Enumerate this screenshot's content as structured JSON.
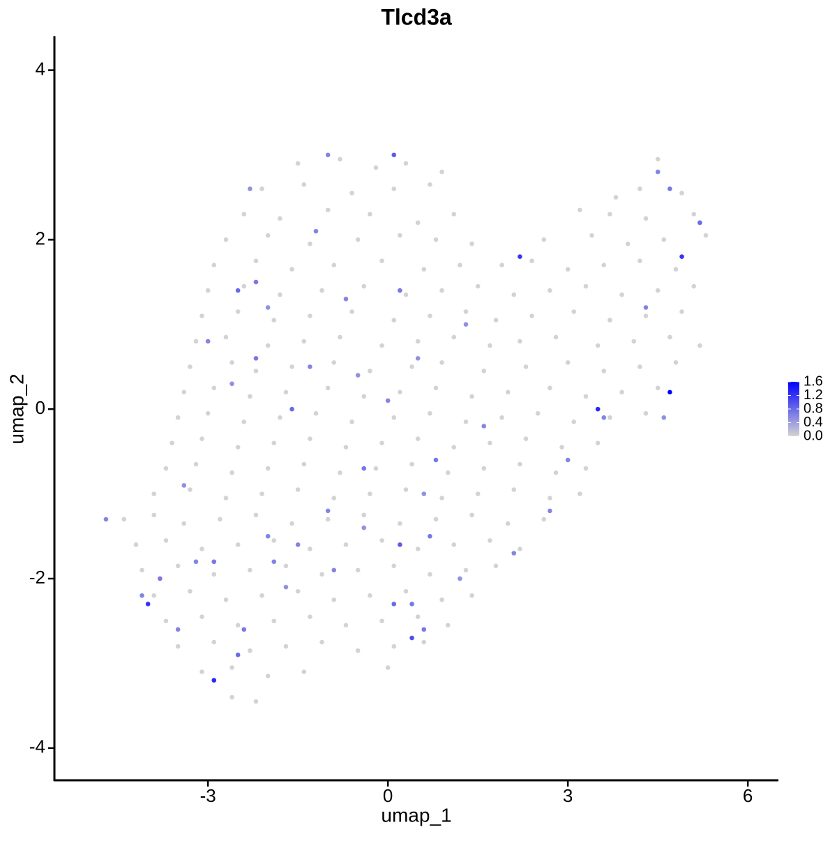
{
  "chart_data": {
    "type": "scatter",
    "title": "Tlcd3a",
    "x_label": "umap_1",
    "y_label": "umap_2",
    "xlim": [
      -5.56,
      6.51
    ],
    "ylim": [
      -4.38,
      4.4
    ],
    "xticks": [
      -3,
      0,
      3,
      6
    ],
    "yticks": [
      -4,
      -2,
      0,
      2,
      4
    ],
    "color_low": "#d3d3d3",
    "color_high": "#0000ff",
    "clim": [
      0,
      1.6
    ],
    "colorbar_ticks": [
      {
        "value": 0,
        "label": "0.0"
      },
      0.4,
      0.8,
      1.2,
      1.6
    ],
    "x": [
      -1.5,
      -0.8,
      -0.2,
      0.3,
      0.9,
      4.5,
      -2.1,
      -1.4,
      -0.6,
      0.1,
      0.7,
      3.8,
      4.2,
      4.9,
      -2.4,
      -1.8,
      -1.0,
      -0.3,
      0.5,
      1.1,
      3.2,
      3.7,
      4.3,
      5.1,
      -2.7,
      -2.0,
      -1.3,
      -0.5,
      0.2,
      0.8,
      1.4,
      2.6,
      3.4,
      4.0,
      4.6,
      5.3,
      -2.9,
      -2.2,
      -1.6,
      -0.9,
      -0.1,
      0.6,
      1.2,
      1.9,
      2.4,
      3.0,
      3.6,
      4.2,
      4.8,
      -3.0,
      -2.4,
      -1.8,
      -1.1,
      -0.4,
      0.3,
      0.9,
      1.5,
      2.1,
      2.7,
      3.3,
      3.9,
      4.5,
      5.1,
      -3.1,
      -2.5,
      -1.9,
      -1.3,
      -0.6,
      0.1,
      0.7,
      1.3,
      1.8,
      2.4,
      3.1,
      3.7,
      4.3,
      4.9,
      -3.2,
      -2.7,
      -2.0,
      -1.4,
      -0.8,
      -0.1,
      0.5,
      1.1,
      1.7,
      2.2,
      2.8,
      3.5,
      4.1,
      4.7,
      5.2,
      -3.3,
      -2.6,
      -2.2,
      -1.6,
      -0.9,
      -0.3,
      0.4,
      0.9,
      1.6,
      2.3,
      3.0,
      3.6,
      4.2,
      4.8,
      -3.4,
      -2.9,
      -2.3,
      -1.7,
      -1.0,
      -0.4,
      0.2,
      0.8,
      1.4,
      2.0,
      2.7,
      3.3,
      3.9,
      4.5,
      -3.5,
      -3.0,
      -2.4,
      -1.8,
      -1.2,
      -0.6,
      0.1,
      0.7,
      1.3,
      1.9,
      2.5,
      3.1,
      3.7,
      4.3,
      -3.6,
      -3.1,
      -2.5,
      -1.9,
      -1.3,
      -0.7,
      -0.1,
      0.5,
      1.1,
      1.7,
      2.3,
      2.9,
      3.5,
      -3.7,
      -3.2,
      -2.6,
      -2.0,
      -1.4,
      -0.8,
      -0.2,
      0.4,
      1.0,
      1.6,
      2.2,
      2.8,
      3.3,
      -3.9,
      -3.3,
      -2.7,
      -2.1,
      -1.5,
      -0.9,
      -0.3,
      0.3,
      0.9,
      1.5,
      2.1,
      2.7,
      3.2,
      -4.4,
      -3.9,
      -3.4,
      -2.8,
      -2.2,
      -1.6,
      -1.0,
      -0.4,
      0.2,
      0.8,
      1.4,
      2.0,
      2.6,
      -4.2,
      -3.7,
      -3.1,
      -2.5,
      -1.9,
      -1.3,
      -0.7,
      -0.1,
      0.5,
      1.1,
      1.7,
      2.2,
      -4.1,
      -3.5,
      -2.9,
      -2.3,
      -1.7,
      -1.1,
      -0.5,
      0.1,
      0.7,
      1.3,
      1.8,
      -3.9,
      -3.3,
      -2.7,
      -2.1,
      -1.5,
      -0.9,
      -0.3,
      0.3,
      0.9,
      1.4,
      -3.7,
      -3.1,
      -2.5,
      -1.9,
      -1.3,
      -0.7,
      -0.1,
      0.5,
      1.0,
      -3.5,
      -2.9,
      -2.3,
      -1.7,
      -1.1,
      -0.5,
      0.1,
      0.6,
      -3.1,
      -2.6,
      -2.0,
      -1.4,
      0.0,
      -2.6,
      -2.2,
      -2.3,
      -1.0,
      0.1,
      -2.2,
      -2.5,
      -2.0,
      -1.2,
      -3.0,
      -2.2,
      -1.3,
      -2.6,
      -1.6,
      -0.5,
      0.0,
      0.5,
      1.3,
      2.2,
      4.5,
      4.7,
      5.2,
      4.9,
      4.3,
      3.5,
      4.7,
      3.6,
      4.6,
      -4.7,
      -4.0,
      -4.1,
      -3.8,
      -2.9,
      -2.5,
      -2.4,
      -2.0,
      -1.0,
      -0.4,
      0.2,
      0.1,
      0.4,
      0.4,
      0.6,
      0.7,
      1.2,
      2.1,
      2.7,
      3.0,
      -1.9,
      -1.7,
      -3.2,
      -3.4,
      -0.9,
      0.8,
      1.6,
      -0.7,
      0.2,
      0.6,
      -2.9,
      -3.5,
      -1.5,
      -0.4
    ],
    "y": [
      2.9,
      2.95,
      2.85,
      2.9,
      2.8,
      2.95,
      2.6,
      2.65,
      2.55,
      2.6,
      2.65,
      2.5,
      2.6,
      2.55,
      2.3,
      2.25,
      2.35,
      2.3,
      2.2,
      2.3,
      2.35,
      2.3,
      2.25,
      2.3,
      2.0,
      2.05,
      1.95,
      2.0,
      2.05,
      2.0,
      1.95,
      2.0,
      2.05,
      1.95,
      2.0,
      2.05,
      1.7,
      1.75,
      1.65,
      1.7,
      1.75,
      1.65,
      1.7,
      1.7,
      1.75,
      1.65,
      1.7,
      1.75,
      1.65,
      1.4,
      1.45,
      1.35,
      1.4,
      1.45,
      1.35,
      1.4,
      1.45,
      1.35,
      1.4,
      1.45,
      1.35,
      1.4,
      1.45,
      1.1,
      1.15,
      1.05,
      1.1,
      1.15,
      1.05,
      1.1,
      1.15,
      1.05,
      1.1,
      1.15,
      1.05,
      1.1,
      1.15,
      0.8,
      0.85,
      0.75,
      0.8,
      0.85,
      0.75,
      0.8,
      0.85,
      0.75,
      0.8,
      0.85,
      0.75,
      0.8,
      0.85,
      0.75,
      0.5,
      0.55,
      0.45,
      0.5,
      0.55,
      0.45,
      0.5,
      0.55,
      0.45,
      0.5,
      0.55,
      0.45,
      0.5,
      0.55,
      0.2,
      0.25,
      0.15,
      0.2,
      0.25,
      0.15,
      0.2,
      0.25,
      0.15,
      0.2,
      0.25,
      0.15,
      0.2,
      0.25,
      -0.1,
      -0.05,
      -0.15,
      -0.1,
      -0.05,
      -0.15,
      -0.1,
      -0.05,
      -0.15,
      -0.1,
      -0.05,
      -0.15,
      -0.1,
      -0.05,
      -0.4,
      -0.35,
      -0.45,
      -0.4,
      -0.35,
      -0.45,
      -0.4,
      -0.35,
      -0.45,
      -0.4,
      -0.35,
      -0.45,
      -0.4,
      -0.7,
      -0.65,
      -0.75,
      -0.7,
      -0.65,
      -0.75,
      -0.7,
      -0.65,
      -0.75,
      -0.7,
      -0.65,
      -0.75,
      -0.7,
      -1.0,
      -0.95,
      -1.05,
      -1.0,
      -0.95,
      -1.05,
      -1.0,
      -0.95,
      -1.05,
      -1.0,
      -0.95,
      -1.05,
      -1.0,
      -1.3,
      -1.25,
      -1.35,
      -1.3,
      -1.25,
      -1.35,
      -1.3,
      -1.25,
      -1.35,
      -1.3,
      -1.25,
      -1.35,
      -1.3,
      -1.6,
      -1.55,
      -1.65,
      -1.6,
      -1.55,
      -1.65,
      -1.6,
      -1.55,
      -1.65,
      -1.6,
      -1.55,
      -1.65,
      -1.9,
      -1.85,
      -1.95,
      -1.9,
      -1.85,
      -1.95,
      -1.9,
      -1.85,
      -1.95,
      -1.9,
      -1.85,
      -2.2,
      -2.15,
      -2.25,
      -2.2,
      -2.15,
      -2.25,
      -2.2,
      -2.15,
      -2.25,
      -2.2,
      -2.5,
      -2.45,
      -2.55,
      -2.5,
      -2.45,
      -2.55,
      -2.5,
      -2.45,
      -2.55,
      -2.8,
      -2.75,
      -2.85,
      -2.8,
      -2.75,
      -2.85,
      -2.8,
      -2.75,
      -3.1,
      -3.05,
      -3.15,
      -3.1,
      -3.05,
      -3.4,
      -3.45,
      2.6,
      3.0,
      3.0,
      1.5,
      1.4,
      1.2,
      2.1,
      0.8,
      0.6,
      0.5,
      0.3,
      0.0,
      0.4,
      0.1,
      0.6,
      1.0,
      1.8,
      2.8,
      2.6,
      2.2,
      1.8,
      1.2,
      0.0,
      0.2,
      -0.1,
      -0.1,
      -1.3,
      -2.3,
      -2.2,
      -2.0,
      -3.2,
      -2.9,
      -2.6,
      -1.5,
      -1.2,
      -0.7,
      -1.6,
      -2.3,
      -2.3,
      -2.7,
      -2.6,
      -1.5,
      -2.0,
      -1.7,
      -1.2,
      -0.6,
      -1.8,
      -2.1,
      -1.8,
      -0.9,
      -1.9,
      -0.6,
      -0.2,
      1.3,
      1.4,
      -1.0,
      -1.8,
      -2.6,
      -1.6,
      -1.4
    ],
    "values": [
      0,
      0,
      0,
      0,
      0,
      0,
      0,
      0,
      0,
      0,
      0,
      0,
      0,
      0,
      0,
      0,
      0,
      0,
      0,
      0,
      0,
      0,
      0,
      0,
      0,
      0,
      0,
      0,
      0,
      0,
      0,
      0,
      0,
      0,
      0,
      0,
      0,
      0,
      0,
      0,
      0,
      0,
      0,
      0,
      0,
      0,
      0,
      0,
      0,
      0,
      0,
      0,
      0,
      0,
      0,
      0,
      0,
      0,
      0,
      0,
      0,
      0,
      0,
      0,
      0,
      0,
      0,
      0,
      0,
      0,
      0,
      0,
      0,
      0,
      0,
      0,
      0,
      0,
      0,
      0,
      0,
      0,
      0,
      0,
      0,
      0,
      0,
      0,
      0,
      0,
      0,
      0,
      0,
      0,
      0,
      0,
      0,
      0,
      0,
      0,
      0,
      0,
      0,
      0,
      0,
      0,
      0,
      0,
      0,
      0,
      0,
      0,
      0,
      0,
      0,
      0,
      0,
      0,
      0,
      0,
      0,
      0,
      0,
      0,
      0,
      0,
      0,
      0,
      0,
      0,
      0,
      0,
      0,
      0,
      0,
      0,
      0,
      0,
      0,
      0,
      0,
      0,
      0,
      0,
      0,
      0,
      0,
      0,
      0,
      0,
      0,
      0,
      0,
      0,
      0,
      0,
      0,
      0,
      0,
      0,
      0,
      0,
      0,
      0,
      0,
      0,
      0,
      0,
      0,
      0,
      0,
      0,
      0,
      0,
      0,
      0,
      0,
      0,
      0,
      0,
      0,
      0,
      0,
      0,
      0,
      0,
      0,
      0,
      0,
      0,
      0,
      0,
      0,
      0,
      0,
      0,
      0,
      0,
      0,
      0,
      0,
      0,
      0,
      0,
      0,
      0,
      0,
      0,
      0,
      0,
      0,
      0,
      0,
      0,
      0,
      0,
      0,
      0,
      0,
      0,
      0,
      0,
      0,
      0,
      0,
      0,
      0,
      0,
      0,
      0,
      0,
      0,
      0,
      0,
      0,
      0,
      0,
      0,
      0,
      0,
      0,
      0,
      0,
      0.5,
      0.6,
      0.9,
      0.7,
      0.8,
      0.5,
      0.6,
      0.6,
      0.7,
      0.6,
      0.5,
      0.8,
      0.5,
      0.6,
      0.5,
      0.5,
      1.2,
      0.6,
      0.7,
      0.8,
      1.2,
      0.6,
      1.3,
      1.6,
      0.6,
      0.5,
      0.6,
      1.2,
      0.6,
      0.7,
      1.3,
      0.8,
      0.7,
      0.6,
      0.6,
      0.7,
      0.9,
      0.8,
      0.7,
      1.0,
      0.7,
      0.7,
      0.5,
      0.6,
      0.6,
      0.6,
      0.6,
      0.5,
      0.6,
      0.5,
      0.6,
      0.7,
      0.6,
      0.6,
      0.7,
      0.5,
      0.7,
      0.6,
      0.6,
      0.5
    ]
  }
}
